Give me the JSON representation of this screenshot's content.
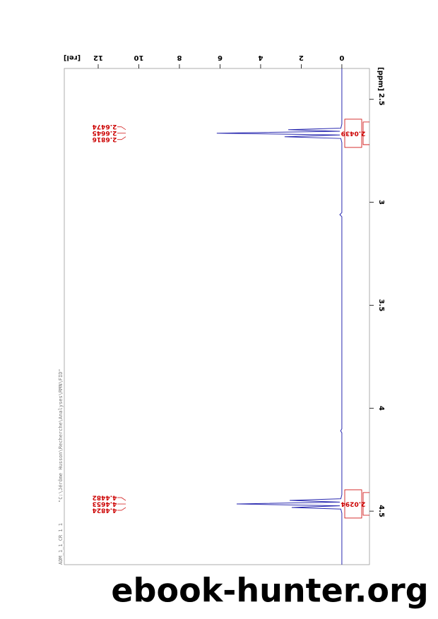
{
  "chart_data": {
    "type": "line",
    "source_path": "\"C:\\Jérôme Husson\\Recherche\\Analyses\\RMN\\FID\"",
    "dataset": "ADM_1_1_CR  1  1",
    "xlabel": "[ppm]",
    "ylabel": "[rel]",
    "x": [
      2.35,
      2.62,
      2.64,
      2.6474,
      2.655,
      2.6645,
      2.673,
      2.6816,
      2.69,
      2.71,
      3.05,
      3.06,
      3.07,
      4.1,
      4.11,
      4.12,
      4.42,
      4.44,
      4.4482,
      4.456,
      4.4653,
      4.474,
      4.4824,
      4.49,
      4.51,
      4.76
    ],
    "series": [
      {
        "color": "#2a2ab0",
        "values": [
          0,
          0,
          0.05,
          2.64,
          0.1,
          6.16,
          0.1,
          2.82,
          0.05,
          0,
          0,
          0.1,
          0,
          0,
          0.06,
          0,
          0,
          0.05,
          2.57,
          0.1,
          5.18,
          0.1,
          2.47,
          0.05,
          0,
          0
        ]
      }
    ],
    "xlim": [
      2.35,
      4.76
    ],
    "xticks": [
      2.5,
      3.0,
      3.5,
      4.0,
      4.5
    ],
    "ylim": [
      -1.36,
      13.67
    ],
    "yticks": [
      0,
      2,
      4,
      6,
      8,
      10,
      12
    ],
    "peaks": [
      2.6474,
      2.6645,
      2.6816,
      4.4482,
      4.4653,
      4.4824
    ],
    "integrals": [
      {
        "value": 2.0439,
        "from": 2.61,
        "to": 2.72
      },
      {
        "value": 2.0294,
        "from": 4.41,
        "to": 4.52
      }
    ],
    "annotation_color": "#cc0000",
    "watermark": "ebook-hunter.org"
  }
}
